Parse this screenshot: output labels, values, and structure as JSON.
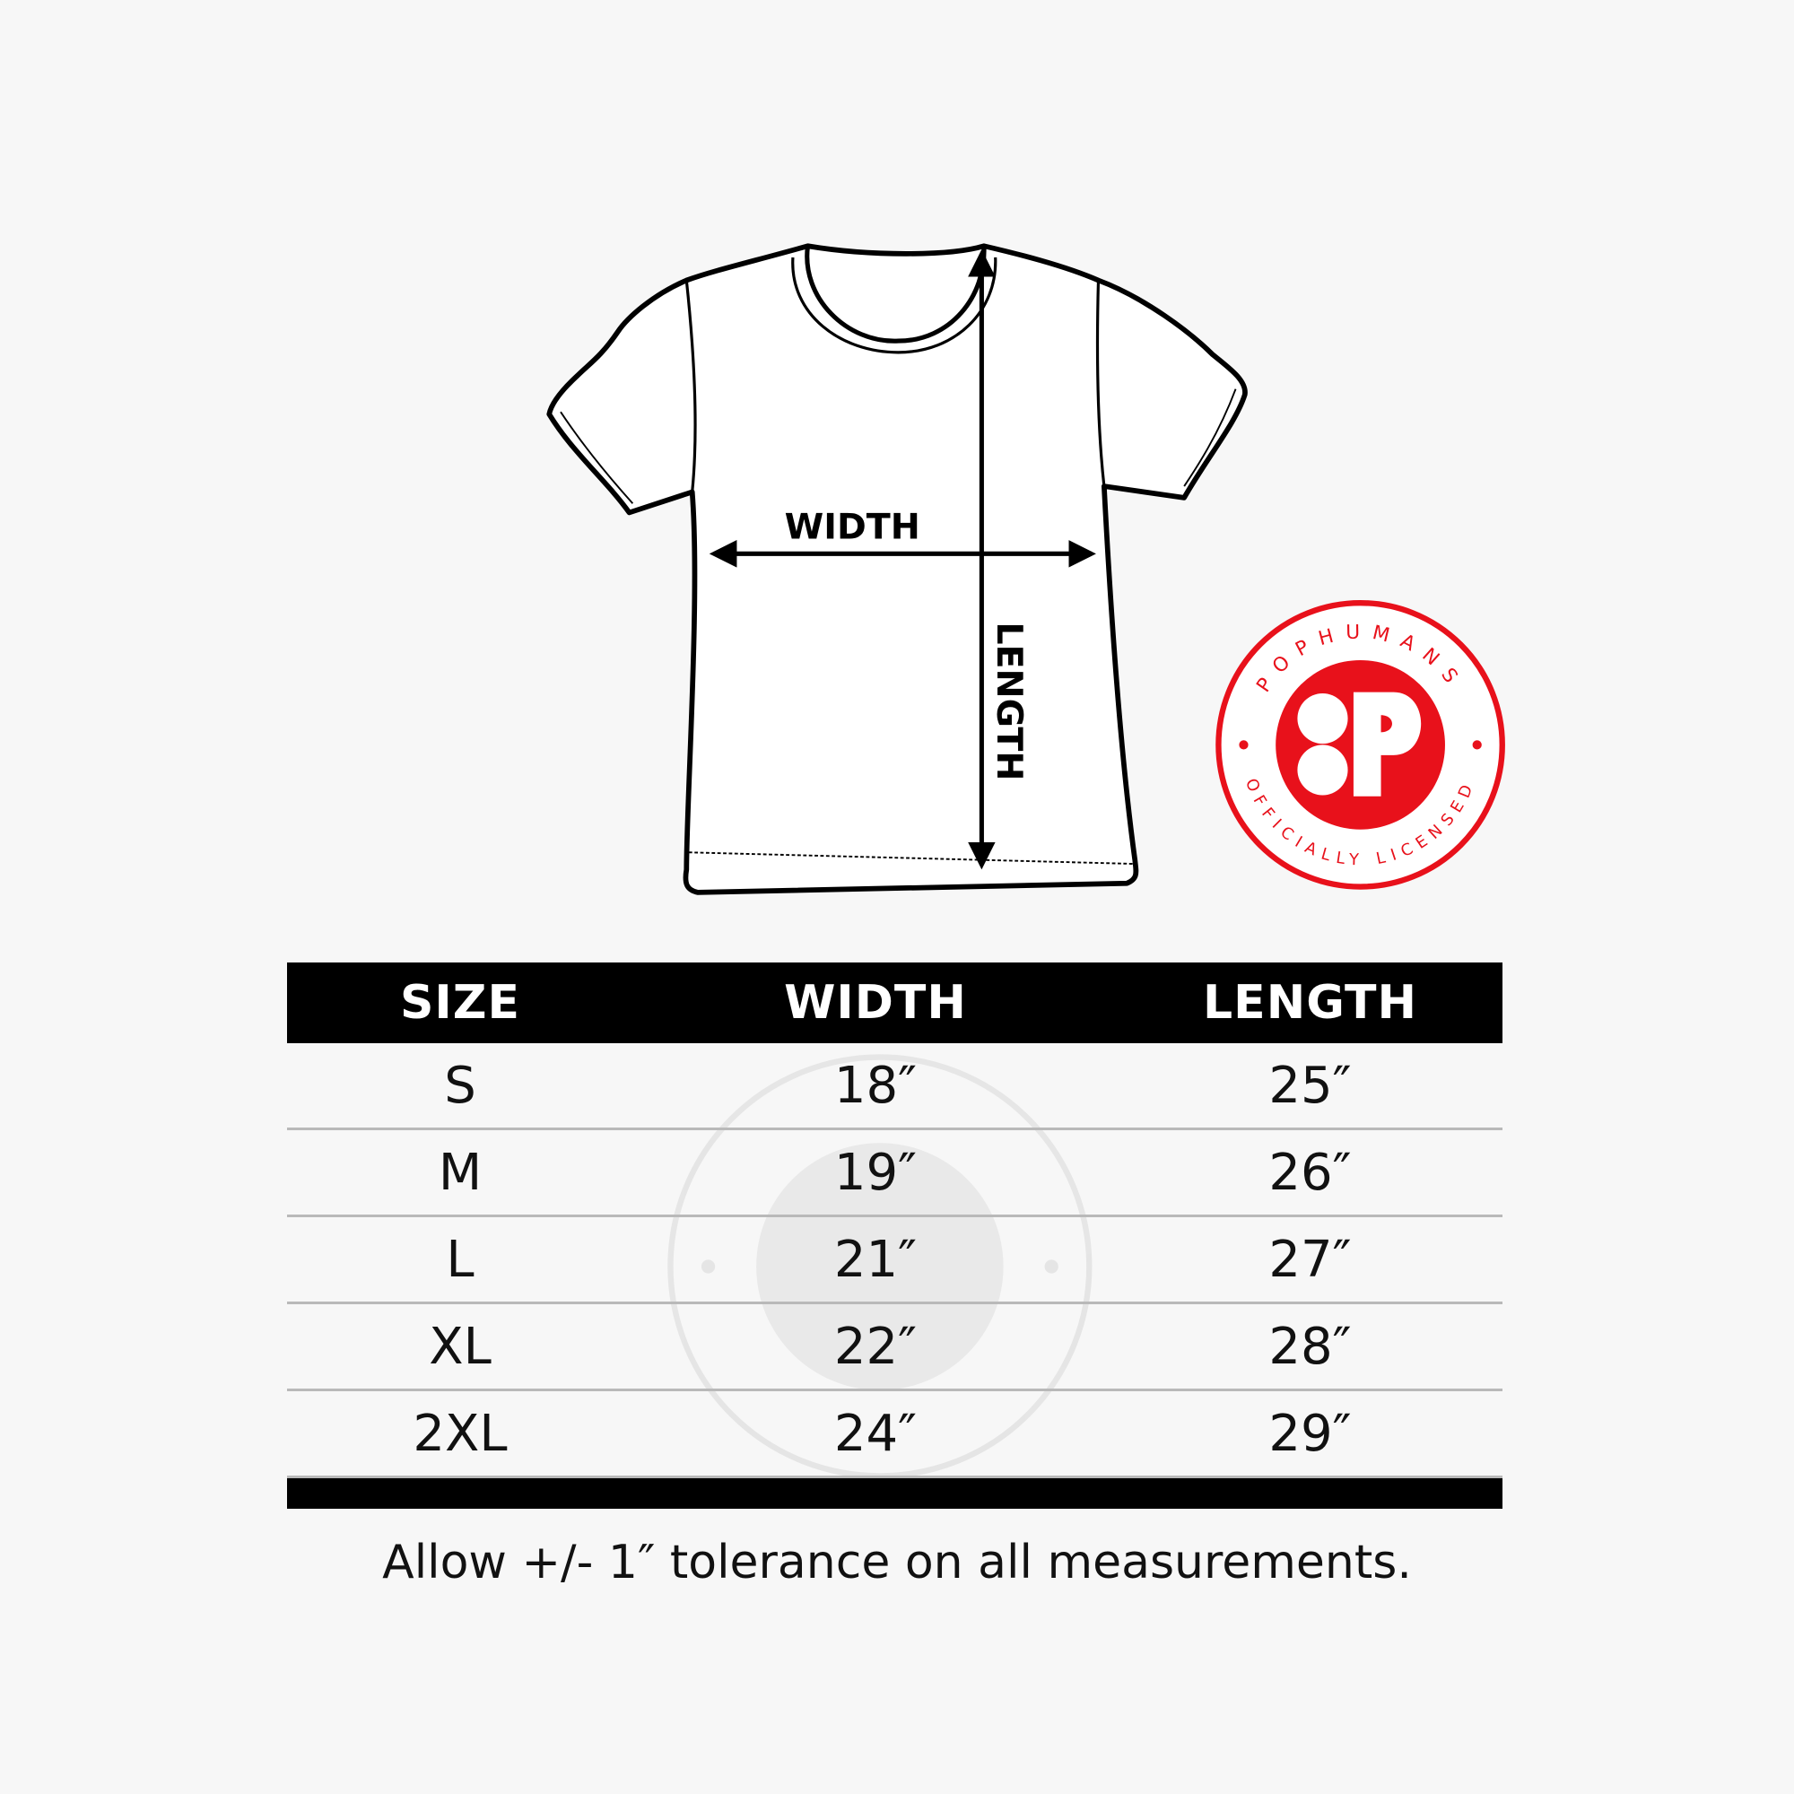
{
  "diagram": {
    "width_label": "WIDTH",
    "length_label": "LENGTH"
  },
  "logo": {
    "brand": "POPHUMANS",
    "tagline": "OFFICIALLY LICENSED",
    "color": "#e8111b"
  },
  "table": {
    "headers": [
      "SIZE",
      "WIDTH",
      "LENGTH"
    ],
    "rows": [
      {
        "size": "S",
        "width": "18″",
        "length": "25″"
      },
      {
        "size": "M",
        "width": "19″",
        "length": "26″"
      },
      {
        "size": "L",
        "width": "21″",
        "length": "27″"
      },
      {
        "size": "XL",
        "width": "22″",
        "length": "28″"
      },
      {
        "size": "2XL",
        "width": "24″",
        "length": "29″"
      }
    ]
  },
  "footer": "Allow +/- 1″ tolerance on all measurements."
}
